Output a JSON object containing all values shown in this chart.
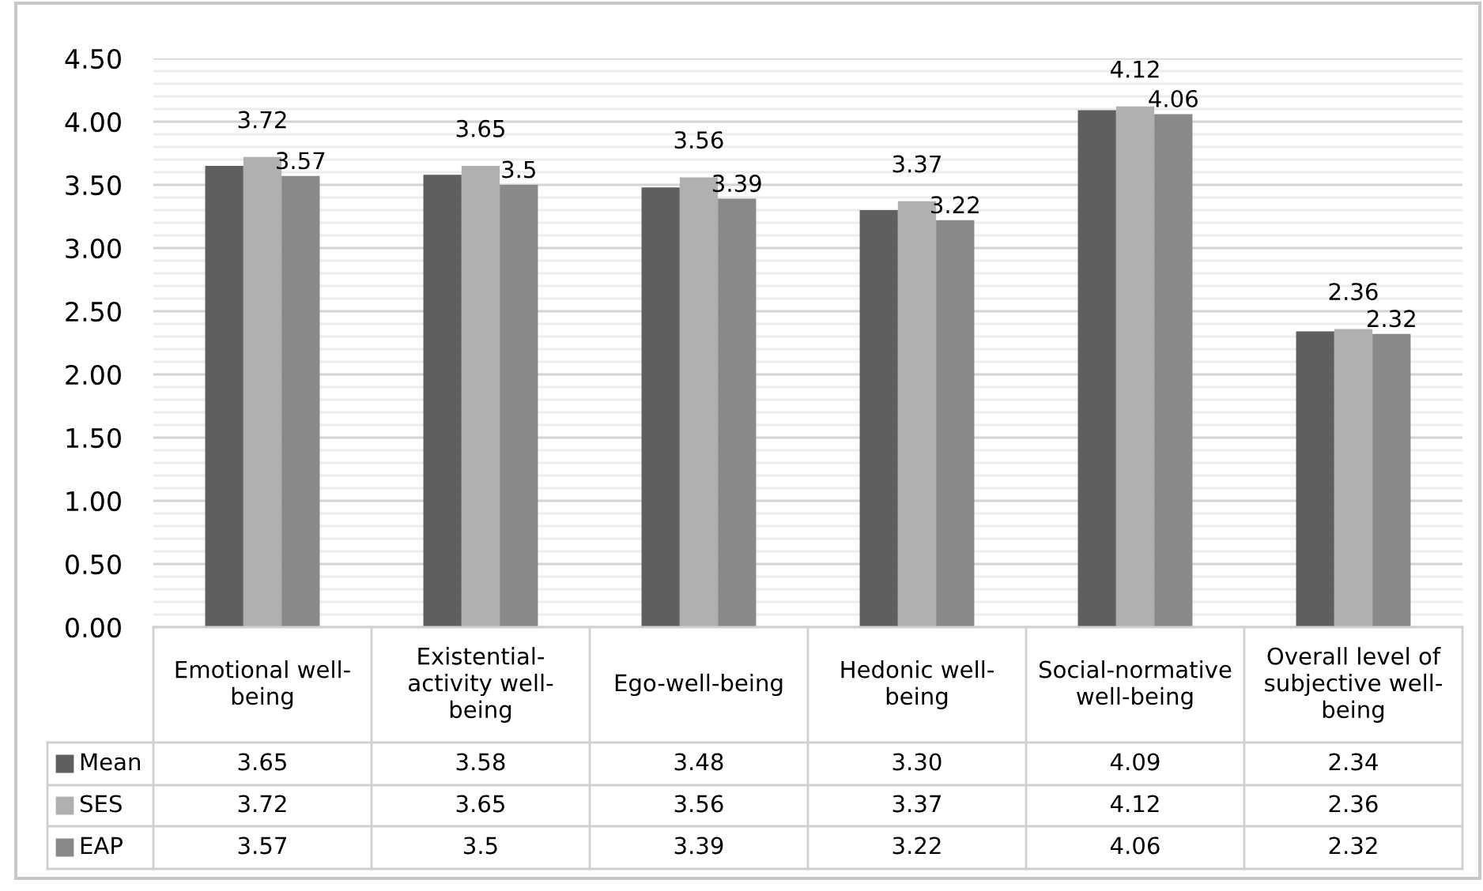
{
  "chart_data": {
    "type": "bar",
    "categories": [
      "Emotional well-being",
      "Existential-activity well-being",
      "Ego-well-being",
      "Hedonic well-being",
      "Social-normative well-being",
      "Overall level of subjective well-being"
    ],
    "series": [
      {
        "name": "Mean",
        "color": "#5f5f5f",
        "values": [
          3.65,
          3.58,
          3.48,
          3.3,
          4.09,
          2.34
        ],
        "value_labels": [
          "3.65",
          "3.58",
          "3.48",
          "3.30",
          "4.09",
          "2.34"
        ]
      },
      {
        "name": "SES",
        "color": "#b0b0b0",
        "values": [
          3.72,
          3.65,
          3.56,
          3.37,
          4.12,
          2.36
        ],
        "value_labels": [
          "3.72",
          "3.65",
          "3.56",
          "3.37",
          "4.12",
          "2.36"
        ]
      },
      {
        "name": "EAP",
        "color": "#898989",
        "values": [
          3.57,
          3.5,
          3.39,
          3.22,
          4.06,
          2.32
        ],
        "value_labels": [
          "3.57",
          "3.5",
          "3.39",
          "3.22",
          "4.06",
          "2.32"
        ]
      }
    ],
    "annotations": [
      "3.72",
      "3.57",
      "3.65",
      "3.5",
      "3.56",
      "3.39",
      "3.37",
      "3.22",
      "4.12",
      "4.06",
      "2.36",
      "2.32"
    ],
    "ylim": [
      0,
      4.5
    ],
    "yticks": [
      {
        "value": 0,
        "label": "0.00"
      },
      {
        "value": 0.1,
        "label": null
      },
      {
        "value": 0.2,
        "label": null
      },
      {
        "value": 0.3,
        "label": null
      },
      {
        "value": 0.4,
        "label": null
      },
      {
        "value": 0.5,
        "label": "0.50"
      },
      {
        "value": 0.6,
        "label": null
      },
      {
        "value": 0.7,
        "label": null
      },
      {
        "value": 0.8,
        "label": null
      },
      {
        "value": 0.9,
        "label": null
      },
      {
        "value": 1,
        "label": "1.00"
      },
      {
        "value": 1.1,
        "label": null
      },
      {
        "value": 1.2,
        "label": null
      },
      {
        "value": 1.3,
        "label": null
      },
      {
        "value": 1.4,
        "label": null
      },
      {
        "value": 1.5,
        "label": "1.50"
      },
      {
        "value": 1.6,
        "label": null
      },
      {
        "value": 1.7,
        "label": null
      },
      {
        "value": 1.8,
        "label": null
      },
      {
        "value": 1.9,
        "label": null
      },
      {
        "value": 2,
        "label": "2.00"
      },
      {
        "value": 2.1,
        "label": null
      },
      {
        "value": 2.2,
        "label": null
      },
      {
        "value": 2.3,
        "label": null
      },
      {
        "value": 2.4,
        "label": null
      },
      {
        "value": 2.5,
        "label": "2.50"
      },
      {
        "value": 2.6,
        "label": null
      },
      {
        "value": 2.7,
        "label": null
      },
      {
        "value": 2.8,
        "label": null
      },
      {
        "value": 2.9,
        "label": null
      },
      {
        "value": 3,
        "label": "3.00"
      },
      {
        "value": 3.1,
        "label": null
      },
      {
        "value": 3.2,
        "label": null
      },
      {
        "value": 3.3,
        "label": null
      },
      {
        "value": 3.4,
        "label": null
      },
      {
        "value": 3.5,
        "label": "3.50"
      },
      {
        "value": 3.6,
        "label": null
      },
      {
        "value": 3.7,
        "label": null
      },
      {
        "value": 3.8,
        "label": null
      },
      {
        "value": 3.9,
        "label": null
      },
      {
        "value": 4,
        "label": "4.00"
      },
      {
        "value": 4.1,
        "label": null
      },
      {
        "value": 4.2,
        "label": null
      },
      {
        "value": 4.3,
        "label": null
      },
      {
        "value": 4.4,
        "label": null
      },
      {
        "value": 4.5,
        "label": "4.50"
      }
    ],
    "grid": "y",
    "legend": "bottom left"
  }
}
